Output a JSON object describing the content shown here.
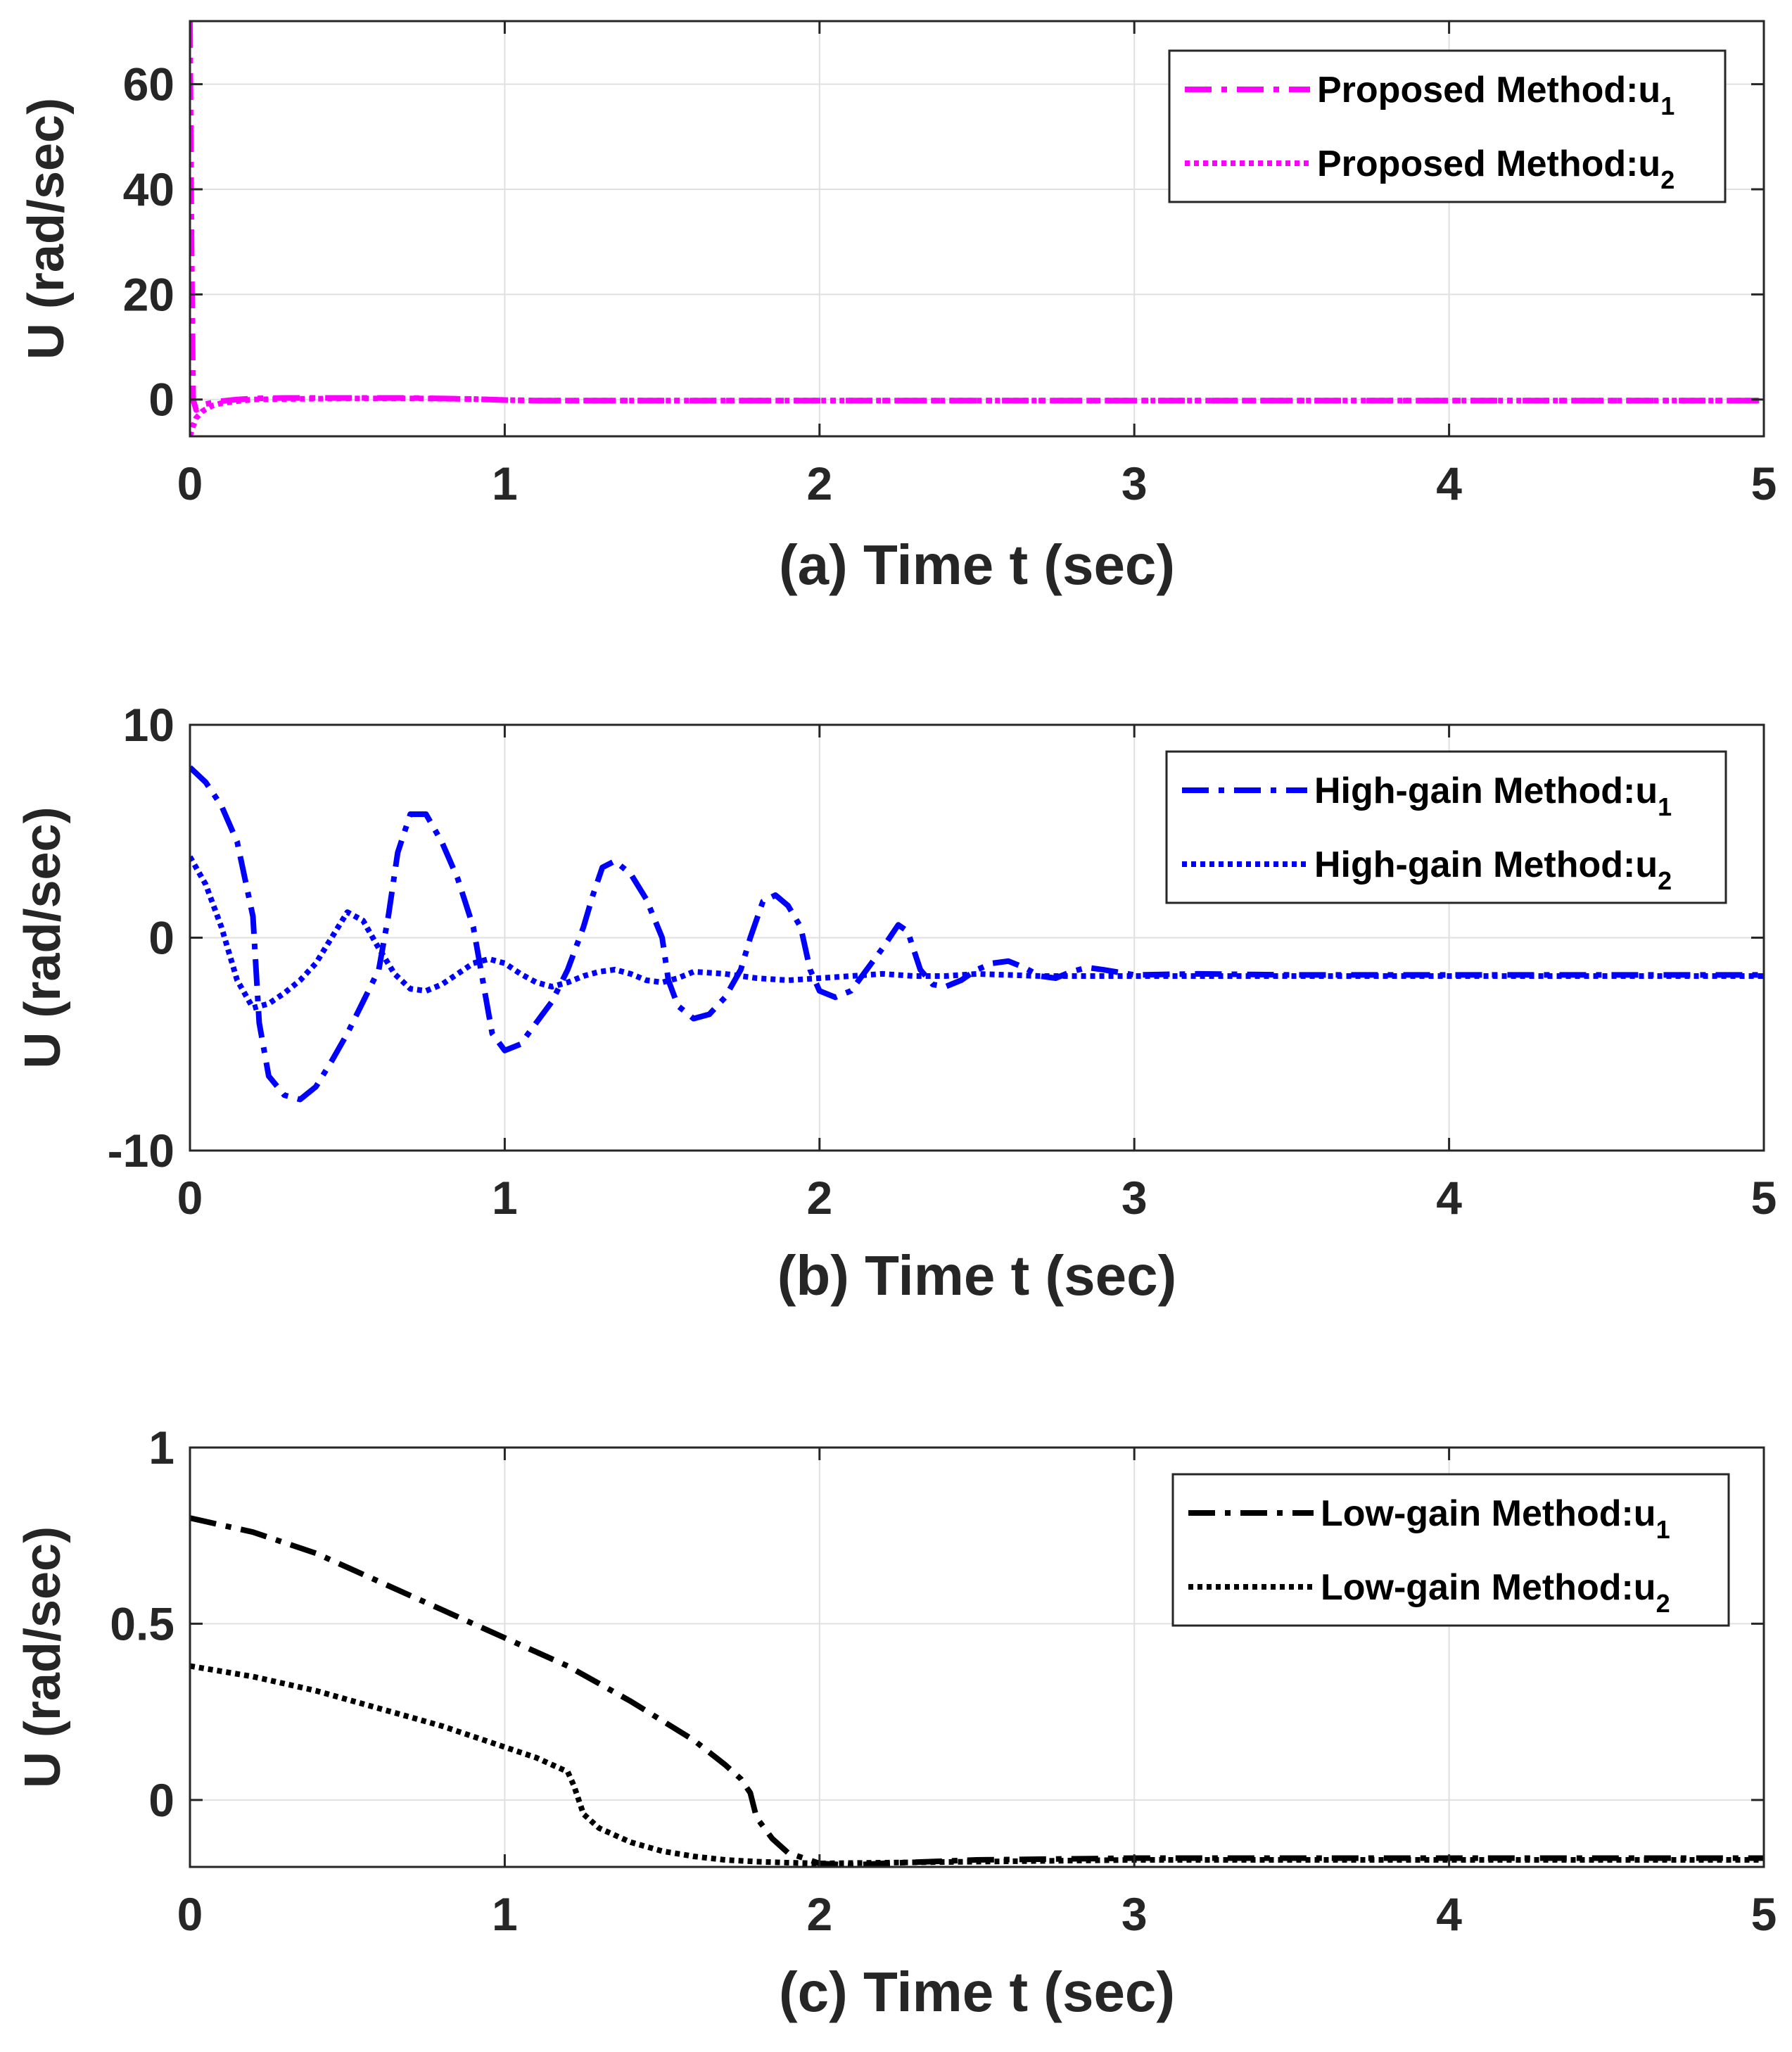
{
  "chart_data": [
    {
      "type": "line",
      "xlabel": "(a) Time t (sec)",
      "ylabel": "U (rad/sec)",
      "xlim": [
        0,
        5
      ],
      "ylim": [
        -7,
        72
      ],
      "xticks": [
        0,
        1,
        2,
        3,
        4,
        5
      ],
      "yticks": [
        0,
        20,
        40,
        60
      ],
      "ytick_labels": [
        "0",
        "20",
        "40",
        "60"
      ],
      "grid": true,
      "legend_position": "top-right",
      "series": [
        {
          "name": "Proposed Method:u",
          "subscript": "1",
          "color": "#ff00ff",
          "style": "dashdot",
          "x": [
            0,
            0.005,
            0.01,
            0.02,
            0.04,
            0.07,
            0.1,
            0.15,
            0.2,
            0.3,
            0.5,
            0.7,
            0.9,
            1.0,
            1.1,
            1.5,
            2,
            3,
            4,
            5
          ],
          "y": [
            72,
            30,
            0,
            -2,
            -1,
            -0.6,
            -0.3,
            0,
            0.2,
            0.3,
            0.3,
            0.3,
            0.1,
            -0.1,
            -0.2,
            -0.2,
            -0.2,
            -0.2,
            -0.2,
            -0.2
          ]
        },
        {
          "name": "Proposed Method:u",
          "subscript": "2",
          "color": "#ff00ff",
          "style": "dotted",
          "x": [
            0,
            0.005,
            0.01,
            0.02,
            0.04,
            0.07,
            0.1,
            0.15,
            0.2,
            0.3,
            0.5,
            0.7,
            0.9,
            1.0,
            1.1,
            1.5,
            2,
            3,
            4,
            5
          ],
          "y": [
            -7,
            -6,
            -5,
            -3.5,
            -2.2,
            -1.2,
            -0.7,
            -0.3,
            0,
            0.1,
            0.2,
            0.2,
            0.1,
            -0.1,
            -0.2,
            -0.2,
            -0.2,
            -0.2,
            -0.2,
            -0.2
          ]
        }
      ]
    },
    {
      "type": "line",
      "xlabel": "(b) Time t (sec)",
      "ylabel": "U (rad/sec)",
      "xlim": [
        0,
        5
      ],
      "ylim": [
        -10,
        10
      ],
      "xticks": [
        0,
        1,
        2,
        3,
        4,
        5
      ],
      "yticks": [
        -10,
        0,
        10
      ],
      "ytick_labels": [
        "-10",
        "0",
        "10"
      ],
      "grid": true,
      "legend_position": "top-right",
      "series": [
        {
          "name": "High-gain Method:u",
          "subscript": "1",
          "color": "#0000ff",
          "style": "dashdot",
          "x": [
            0,
            0.05,
            0.1,
            0.15,
            0.2,
            0.22,
            0.25,
            0.3,
            0.35,
            0.4,
            0.45,
            0.5,
            0.55,
            0.6,
            0.63,
            0.66,
            0.7,
            0.75,
            0.8,
            0.85,
            0.9,
            0.93,
            0.96,
            1.0,
            1.05,
            1.1,
            1.15,
            1.2,
            1.25,
            1.28,
            1.31,
            1.35,
            1.4,
            1.45,
            1.5,
            1.52,
            1.55,
            1.6,
            1.65,
            1.7,
            1.75,
            1.78,
            1.82,
            1.86,
            1.9,
            1.94,
            1.97,
            2.0,
            2.05,
            2.1,
            2.15,
            2.2,
            2.25,
            2.28,
            2.32,
            2.36,
            2.4,
            2.45,
            2.5,
            2.55,
            2.6,
            2.65,
            2.7,
            2.75,
            2.8,
            2.85,
            2.9,
            3.0,
            3.2,
            3.5,
            4.0,
            5.0
          ],
          "y": [
            8,
            7.3,
            6.2,
            4.5,
            1,
            -4,
            -6.5,
            -7.4,
            -7.6,
            -7,
            -5.8,
            -4.5,
            -3,
            -1.5,
            1,
            4,
            5.8,
            5.8,
            4.5,
            2.8,
            0.5,
            -2,
            -4.5,
            -5.3,
            -5,
            -4,
            -3,
            -1.5,
            0.5,
            2,
            3.3,
            3.6,
            3,
            1.8,
            0,
            -2,
            -3.2,
            -3.8,
            -3.6,
            -2.8,
            -1.5,
            0,
            1.7,
            2,
            1.5,
            0.5,
            -1.5,
            -2.5,
            -2.8,
            -2.5,
            -1.5,
            -0.5,
            0.6,
            0.3,
            -1.5,
            -2.2,
            -2.3,
            -2,
            -1.5,
            -1.2,
            -1.1,
            -1.4,
            -1.8,
            -1.9,
            -1.6,
            -1.4,
            -1.5,
            -1.75,
            -1.7,
            -1.75,
            -1.75,
            -1.75
          ]
        },
        {
          "name": "High-gain Method:u",
          "subscript": "2",
          "color": "#0000ff",
          "style": "dotted",
          "x": [
            0,
            0.05,
            0.1,
            0.15,
            0.2,
            0.25,
            0.3,
            0.35,
            0.4,
            0.45,
            0.5,
            0.55,
            0.6,
            0.65,
            0.7,
            0.75,
            0.8,
            0.85,
            0.9,
            0.95,
            1.0,
            1.05,
            1.1,
            1.15,
            1.2,
            1.25,
            1.3,
            1.35,
            1.4,
            1.45,
            1.5,
            1.55,
            1.6,
            1.7,
            1.8,
            1.9,
            2.0,
            2.1,
            2.2,
            2.3,
            2.4,
            2.5,
            2.7,
            3.0,
            3.5,
            4.0,
            5.0
          ],
          "y": [
            3.8,
            2.5,
            0.5,
            -2,
            -3.3,
            -3.1,
            -2.6,
            -2,
            -1.2,
            0,
            1.2,
            0.8,
            -0.5,
            -1.7,
            -2.4,
            -2.5,
            -2.2,
            -1.7,
            -1.2,
            -1.0,
            -1.2,
            -1.7,
            -2.1,
            -2.3,
            -2.1,
            -1.8,
            -1.6,
            -1.5,
            -1.7,
            -2.0,
            -2.1,
            -1.9,
            -1.6,
            -1.7,
            -1.9,
            -2.0,
            -1.9,
            -1.8,
            -1.7,
            -1.8,
            -1.8,
            -1.7,
            -1.8,
            -1.8,
            -1.8,
            -1.8,
            -1.8
          ]
        }
      ]
    },
    {
      "type": "line",
      "xlabel": "(c) Time t (sec)",
      "ylabel": "U (rad/sec)",
      "xlim": [
        0,
        5
      ],
      "ylim": [
        -0.19,
        1
      ],
      "xticks": [
        0,
        1,
        2,
        3,
        4,
        5
      ],
      "yticks": [
        0,
        0.5,
        1
      ],
      "ytick_labels": [
        "0",
        "0.5",
        "1"
      ],
      "grid": true,
      "legend_position": "top-right",
      "series": [
        {
          "name": "Low-gain Method:u",
          "subscript": "1",
          "color": "#000000",
          "style": "dashdot",
          "x": [
            0,
            0.2,
            0.4,
            0.6,
            0.8,
            1.0,
            1.2,
            1.4,
            1.6,
            1.7,
            1.75,
            1.78,
            1.8,
            1.85,
            1.9,
            2.0,
            2.1,
            2.2,
            2.5,
            3.0,
            4.0,
            5.0
          ],
          "y": [
            0.8,
            0.76,
            0.7,
            0.62,
            0.54,
            0.46,
            0.38,
            0.28,
            0.17,
            0.1,
            0.06,
            0.02,
            -0.05,
            -0.11,
            -0.15,
            -0.18,
            -0.185,
            -0.18,
            -0.17,
            -0.165,
            -0.165,
            -0.165
          ]
        },
        {
          "name": "Low-gain Method:u",
          "subscript": "2",
          "color": "#000000",
          "style": "dotted",
          "x": [
            0,
            0.2,
            0.4,
            0.6,
            0.8,
            1.0,
            1.1,
            1.2,
            1.22,
            1.25,
            1.3,
            1.4,
            1.5,
            1.6,
            1.7,
            1.8,
            1.9,
            2.0,
            2.2,
            2.5,
            3.0,
            4.0,
            5.0
          ],
          "y": [
            0.38,
            0.35,
            0.31,
            0.26,
            0.21,
            0.15,
            0.12,
            0.08,
            0.04,
            -0.04,
            -0.08,
            -0.12,
            -0.145,
            -0.16,
            -0.17,
            -0.175,
            -0.178,
            -0.18,
            -0.178,
            -0.175,
            -0.17,
            -0.17,
            -0.17
          ]
        }
      ]
    }
  ]
}
